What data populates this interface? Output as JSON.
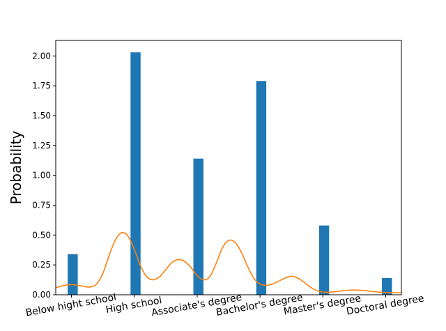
{
  "chart_data": {
    "type": "bar",
    "categories": [
      "Below hight school",
      "High school",
      "Associate's degree",
      "Bachelor's degree",
      "Master's degree",
      "Doctoral degree"
    ],
    "series": [
      {
        "values": [
          0.34,
          2.03,
          1.14,
          1.79,
          0.58,
          0.14
        ],
        "color": "#1f77b4"
      }
    ],
    "density_curve": {
      "color": "#ff7f0e",
      "x": [
        -0.25,
        -0.1,
        0.0,
        0.1,
        0.2,
        0.3,
        0.4,
        0.5,
        0.6,
        0.7,
        0.8,
        0.9,
        1.0,
        1.1,
        1.2,
        1.3,
        1.4,
        1.5,
        1.6,
        1.7,
        1.8,
        1.9,
        2.0,
        2.1,
        2.2,
        2.3,
        2.4,
        2.5,
        2.6,
        2.7,
        2.8,
        2.9,
        3.0,
        3.1,
        3.2,
        3.3,
        3.4,
        3.5,
        3.6,
        3.7,
        3.8,
        3.9,
        4.0,
        4.1,
        4.2,
        4.3,
        4.4,
        4.5,
        4.6,
        4.7,
        4.8,
        4.9,
        5.0,
        5.1,
        5.25
      ],
      "y": [
        0.06,
        0.08,
        0.085,
        0.08,
        0.07,
        0.065,
        0.09,
        0.18,
        0.33,
        0.46,
        0.52,
        0.49,
        0.38,
        0.24,
        0.15,
        0.125,
        0.15,
        0.21,
        0.27,
        0.295,
        0.28,
        0.23,
        0.16,
        0.125,
        0.15,
        0.26,
        0.39,
        0.455,
        0.44,
        0.36,
        0.24,
        0.14,
        0.09,
        0.08,
        0.09,
        0.115,
        0.14,
        0.155,
        0.14,
        0.105,
        0.065,
        0.035,
        0.022,
        0.022,
        0.026,
        0.032,
        0.038,
        0.04,
        0.038,
        0.033,
        0.027,
        0.022,
        0.019,
        0.018,
        0.016
      ]
    },
    "xlabel": "",
    "ylabel": "Probability",
    "ylim": [
      0,
      2.13
    ],
    "xlim": [
      -0.25,
      5.25
    ],
    "yticks": [
      "0.00",
      "0.25",
      "0.50",
      "0.75",
      "1.00",
      "1.25",
      "1.50",
      "1.75",
      "2.00"
    ],
    "grid": false,
    "legend": "none"
  }
}
